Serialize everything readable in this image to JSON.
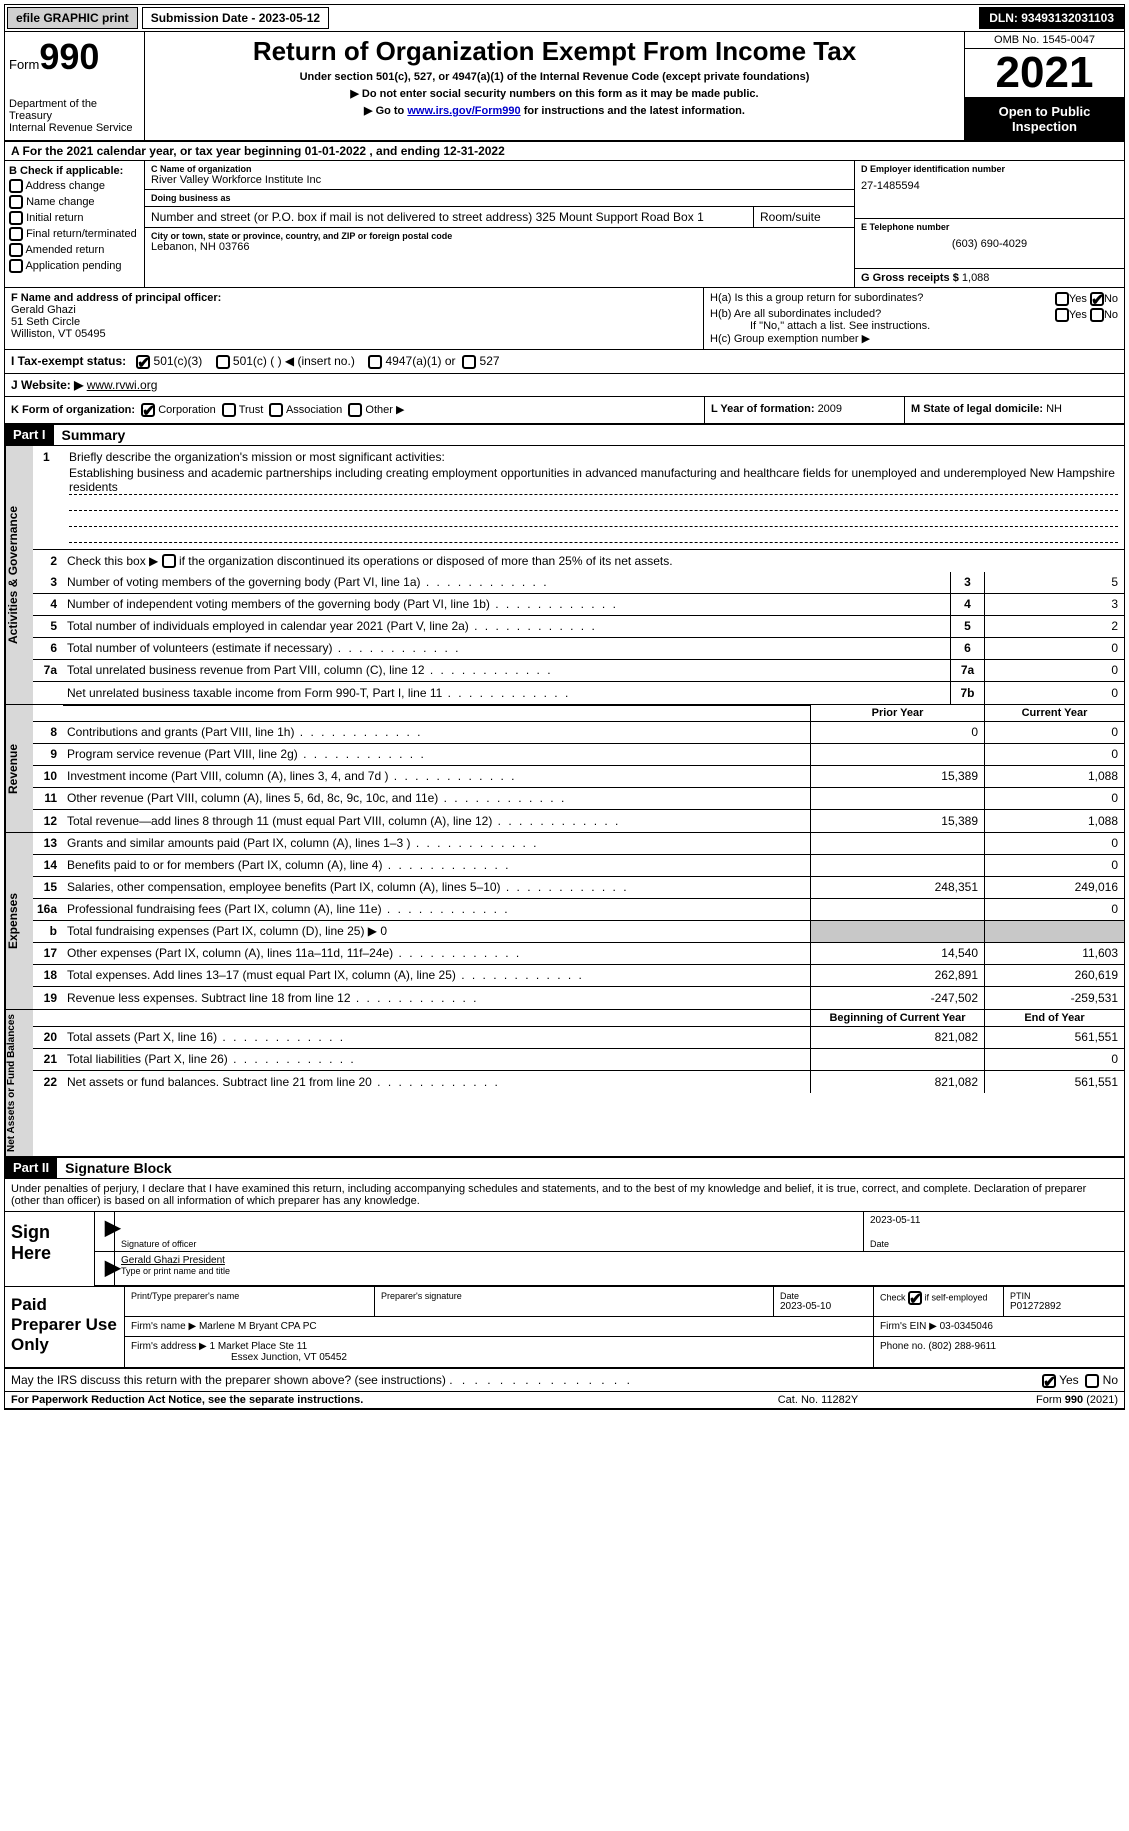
{
  "topbar": {
    "efile": "efile GRAPHIC print",
    "sub_label": "Submission Date - 2023-05-12",
    "dln": "DLN: 93493132031103"
  },
  "header": {
    "form_prefix": "Form",
    "form_num": "990",
    "dept1": "Department of the Treasury",
    "dept2": "Internal Revenue Service",
    "title": "Return of Organization Exempt From Income Tax",
    "sub1": "Under section 501(c), 527, or 4947(a)(1) of the Internal Revenue Code (except private foundations)",
    "sub2": "▶ Do not enter social security numbers on this form as it may be made public.",
    "sub3_pre": "▶ Go to ",
    "sub3_link": "www.irs.gov/Form990",
    "sub3_post": " for instructions and the latest information.",
    "omb": "OMB No. 1545-0047",
    "year": "2021",
    "open": "Open to Public Inspection"
  },
  "rowA": "A For the 2021 calendar year, or tax year beginning 01-01-2022   , and ending 12-31-2022",
  "checkB": {
    "title": "B Check if applicable:",
    "items": [
      "Address change",
      "Name change",
      "Initial return",
      "Final return/terminated",
      "Amended return",
      "Application pending"
    ]
  },
  "org": {
    "c_lbl": "C Name of organization",
    "name": "River Valley Workforce Institute Inc",
    "dba_lbl": "Doing business as",
    "dba": "",
    "addr_lbl": "Number and street (or P.O. box if mail is not delivered to street address)",
    "room_lbl": "Room/suite",
    "addr": "325 Mount Support Road Box 1",
    "city_lbl": "City or town, state or province, country, and ZIP or foreign postal code",
    "city": "Lebanon, NH  03766"
  },
  "right": {
    "d_lbl": "D Employer identification number",
    "d": "27-1485594",
    "e_lbl": "E Telephone number",
    "e": "(603) 690-4029",
    "g_lbl": "G Gross receipts $ ",
    "g": "1,088"
  },
  "f": {
    "lbl": "F  Name and address of principal officer:",
    "name": "Gerald Ghazi",
    "addr1": "51 Seth Circle",
    "addr2": "Williston, VT  05495"
  },
  "h": {
    "ha": "H(a)  Is this a group return for subordinates?",
    "hb": "H(b)  Are all subordinates included?",
    "hb_note": "If \"No,\" attach a list. See instructions.",
    "hc": "H(c)  Group exemption number ▶",
    "yes": "Yes",
    "no": "No"
  },
  "i": {
    "lbl": "I    Tax-exempt status:",
    "o1": "501(c)(3)",
    "o2": "501(c) (  ) ◀ (insert no.)",
    "o3": "4947(a)(1) or",
    "o4": "527"
  },
  "j": {
    "lbl": "J   Website: ▶ ",
    "val": "www.rvwi.org"
  },
  "k": {
    "lbl": "K Form of organization:",
    "o1": "Corporation",
    "o2": "Trust",
    "o3": "Association",
    "o4": "Other ▶"
  },
  "l": {
    "lbl": "L Year of formation: ",
    "val": "2009"
  },
  "m": {
    "lbl": "M State of legal domicile: ",
    "val": "NH"
  },
  "part1": {
    "hdr": "Part I",
    "title": "Summary",
    "q1_lbl": "1",
    "q1_a": "Briefly describe the organization's mission or most significant activities:",
    "q1_b": "Establishing business and academic partnerships including creating employment opportunities in advanced manufacturing and healthcare fields for unemployed and underemployed New Hampshire residents",
    "q2": "Check this box ▶        if the organization discontinued its operations or disposed of more than 25% of its net assets.",
    "side_ag": "Activities & Governance",
    "side_rev": "Revenue",
    "side_exp": "Expenses",
    "side_net": "Net Assets or Fund Balances",
    "rows_ag": [
      {
        "n": "3",
        "d": "Number of voting members of the governing body (Part VI, line 1a)",
        "b": "3",
        "v": "5"
      },
      {
        "n": "4",
        "d": "Number of independent voting members of the governing body (Part VI, line 1b)",
        "b": "4",
        "v": "3"
      },
      {
        "n": "5",
        "d": "Total number of individuals employed in calendar year 2021 (Part V, line 2a)",
        "b": "5",
        "v": "2"
      },
      {
        "n": "6",
        "d": "Total number of volunteers (estimate if necessary)",
        "b": "6",
        "v": "0"
      },
      {
        "n": "7a",
        "d": "Total unrelated business revenue from Part VIII, column (C), line 12",
        "b": "7a",
        "v": "0"
      },
      {
        "n": "",
        "d": "Net unrelated business taxable income from Form 990-T, Part I, line 11",
        "b": "7b",
        "v": "0"
      }
    ],
    "col_prior": "Prior Year",
    "col_curr": "Current Year",
    "rows_rev": [
      {
        "n": "8",
        "d": "Contributions and grants (Part VIII, line 1h)",
        "p": "0",
        "c": "0"
      },
      {
        "n": "9",
        "d": "Program service revenue (Part VIII, line 2g)",
        "p": "",
        "c": "0"
      },
      {
        "n": "10",
        "d": "Investment income (Part VIII, column (A), lines 3, 4, and 7d )",
        "p": "15,389",
        "c": "1,088"
      },
      {
        "n": "11",
        "d": "Other revenue (Part VIII, column (A), lines 5, 6d, 8c, 9c, 10c, and 11e)",
        "p": "",
        "c": "0"
      },
      {
        "n": "12",
        "d": "Total revenue—add lines 8 through 11 (must equal Part VIII, column (A), line 12)",
        "p": "15,389",
        "c": "1,088"
      }
    ],
    "rows_exp": [
      {
        "n": "13",
        "d": "Grants and similar amounts paid (Part IX, column (A), lines 1–3 )",
        "p": "",
        "c": "0"
      },
      {
        "n": "14",
        "d": "Benefits paid to or for members (Part IX, column (A), line 4)",
        "p": "",
        "c": "0"
      },
      {
        "n": "15",
        "d": "Salaries, other compensation, employee benefits (Part IX, column (A), lines 5–10)",
        "p": "248,351",
        "c": "249,016"
      },
      {
        "n": "16a",
        "d": "Professional fundraising fees (Part IX, column (A), line 11e)",
        "p": "",
        "c": "0"
      },
      {
        "n": "b",
        "d": "Total fundraising expenses (Part IX, column (D), line 25) ▶ 0",
        "p": "shade",
        "c": "shade"
      },
      {
        "n": "17",
        "d": "Other expenses (Part IX, column (A), lines 11a–11d, 11f–24e)",
        "p": "14,540",
        "c": "11,603"
      },
      {
        "n": "18",
        "d": "Total expenses. Add lines 13–17 (must equal Part IX, column (A), line 25)",
        "p": "262,891",
        "c": "260,619"
      },
      {
        "n": "19",
        "d": "Revenue less expenses. Subtract line 18 from line 12",
        "p": "-247,502",
        "c": "-259,531"
      }
    ],
    "col_beg": "Beginning of Current Year",
    "col_end": "End of Year",
    "rows_net": [
      {
        "n": "20",
        "d": "Total assets (Part X, line 16)",
        "p": "821,082",
        "c": "561,551"
      },
      {
        "n": "21",
        "d": "Total liabilities (Part X, line 26)",
        "p": "",
        "c": "0"
      },
      {
        "n": "22",
        "d": "Net assets or fund balances. Subtract line 21 from line 20",
        "p": "821,082",
        "c": "561,551"
      }
    ]
  },
  "part2": {
    "hdr": "Part II",
    "title": "Signature Block",
    "decl": "Under penalties of perjury, I declare that I have examined this return, including accompanying schedules and statements, and to the best of my knowledge and belief, it is true, correct, and complete. Declaration of preparer (other than officer) is based on all information of which preparer has any knowledge.",
    "sign_here": "Sign Here",
    "sig_officer": "Signature of officer",
    "sig_date": "2023-05-11",
    "date_lbl": "Date",
    "officer_name": "Gerald Ghazi President",
    "type_name": "Type or print name and title",
    "paid": "Paid Preparer Use Only",
    "prep_name_lbl": "Print/Type preparer's name",
    "prep_sig_lbl": "Preparer's signature",
    "prep_date_lbl": "Date",
    "prep_date": "2023-05-10",
    "self_emp": "Check         if self-employed",
    "ptin_lbl": "PTIN",
    "ptin": "P01272892",
    "firm_name_lbl": "Firm's name      ▶ ",
    "firm_name": "Marlene M Bryant CPA PC",
    "firm_ein_lbl": "Firm's EIN ▶ ",
    "firm_ein": "03-0345046",
    "firm_addr_lbl": "Firm's address ▶ ",
    "firm_addr1": "1 Market Place Ste 11",
    "firm_addr2": "Essex Junction, VT  05452",
    "phone_lbl": "Phone no. ",
    "phone": "(802) 288-9611",
    "may_irs": "May the IRS discuss this return with the preparer shown above? (see instructions)"
  },
  "footer": {
    "f1": "For Paperwork Reduction Act Notice, see the separate instructions.",
    "f2": "Cat. No. 11282Y",
    "f3": "Form 990 (2021)"
  }
}
